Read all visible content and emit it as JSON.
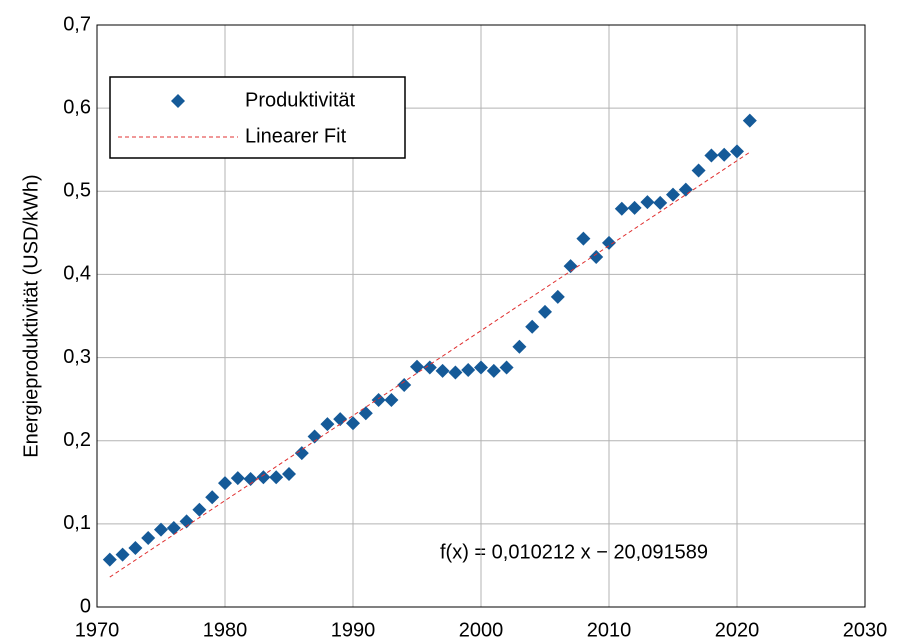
{
  "chart_data": {
    "type": "scatter",
    "ylabel": "Energieproduktivität (USD/kWh)",
    "annotation": "f(x) = 0,010212 x − 20,091589",
    "xlim": [
      1970,
      2030
    ],
    "xticks": [
      1970,
      1980,
      1990,
      2000,
      2010,
      2020,
      2030
    ],
    "ylim": [
      0,
      0.7
    ],
    "yticks": [
      0,
      {
        "value": 0.1,
        "label": "0,1"
      },
      {
        "value": 0.2,
        "label": "0,2"
      },
      {
        "value": 0.3,
        "label": "0,3"
      },
      {
        "value": 0.4,
        "label": "0,4"
      },
      {
        "value": 0.5,
        "label": "0,5"
      },
      {
        "value": 0.6,
        "label": "0,6"
      },
      {
        "value": 0.7,
        "label": "0,7"
      }
    ],
    "grid": true,
    "legend": "upper left",
    "series": [
      {
        "name": "Produktivität",
        "color": "#155a98",
        "style": "markers",
        "x": [
          1971,
          1972,
          1973,
          1974,
          1975,
          1976,
          1977,
          1978,
          1979,
          1980,
          1981,
          1982,
          1983,
          1984,
          1985,
          1986,
          1987,
          1988,
          1989,
          1990,
          1991,
          1992,
          1993,
          1994,
          1995,
          1996,
          1997,
          1998,
          1999,
          2000,
          2001,
          2002,
          2003,
          2004,
          2005,
          2006,
          2007,
          2008,
          2009,
          2010,
          2011,
          2012,
          2013,
          2014,
          2015,
          2016,
          2017,
          2018,
          2019,
          2020,
          2021
        ],
        "values": [
          0.057,
          0.063,
          0.071,
          0.083,
          0.093,
          0.095,
          0.103,
          0.117,
          0.132,
          0.149,
          0.155,
          0.154,
          0.156,
          0.156,
          0.16,
          0.185,
          0.205,
          0.22,
          0.226,
          0.221,
          0.233,
          0.249,
          0.249,
          0.267,
          0.289,
          0.288,
          0.284,
          0.282,
          0.285,
          0.288,
          0.284,
          0.288,
          0.313,
          0.337,
          0.355,
          0.373,
          0.41,
          0.443,
          0.421,
          0.438,
          0.479,
          0.48,
          0.487,
          0.486,
          0.496,
          0.502,
          0.525,
          0.543,
          0.544,
          0.548,
          0.585
        ]
      },
      {
        "name": "Linearer Fit",
        "color": "#e03030",
        "style": "dashed",
        "x": [
          1971,
          2021
        ],
        "values": [
          0.036,
          0.547
        ]
      }
    ]
  }
}
